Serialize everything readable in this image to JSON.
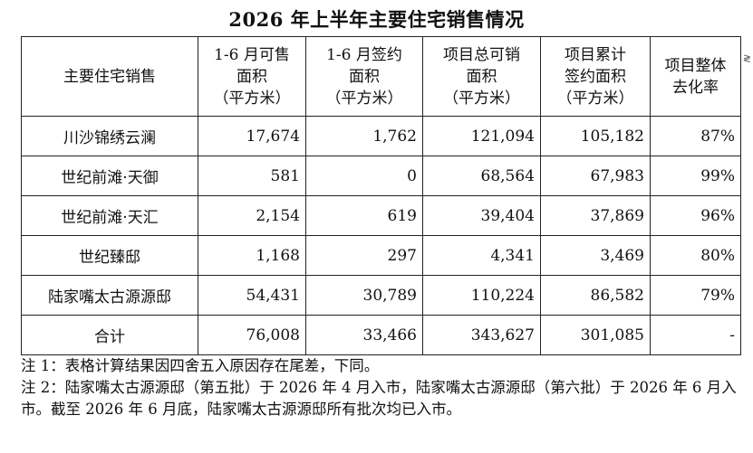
{
  "title": "2026 年上半年主要住宅销售情况",
  "table": {
    "headers": [
      [
        "主要住宅销售"
      ],
      [
        "1-6 月可售",
        "面积",
        "（平方米）"
      ],
      [
        "1-6 月签约",
        "面积",
        "（平方米）"
      ],
      [
        "项目总可销",
        "面积",
        "（平方米）"
      ],
      [
        "项目累计",
        "签约面积",
        "（平方米）"
      ],
      [
        "项目整体",
        "去化率"
      ]
    ],
    "rows": [
      {
        "name": "川沙锦绣云澜",
        "available": "17,674",
        "signed": "1,762",
        "total": "121,094",
        "cumulative": "105,182",
        "rate": "87%"
      },
      {
        "name": "世纪前滩·天御",
        "available": "581",
        "signed": "0",
        "total": "68,564",
        "cumulative": "67,983",
        "rate": "99%"
      },
      {
        "name": "世纪前滩·天汇",
        "available": "2,154",
        "signed": "619",
        "total": "39,404",
        "cumulative": "37,869",
        "rate": "96%"
      },
      {
        "name": "世纪臻邸",
        "available": "1,168",
        "signed": "297",
        "total": "4,341",
        "cumulative": "3,469",
        "rate": "80%"
      },
      {
        "name": "陆家嘴太古源源邸",
        "available": "54,431",
        "signed": "30,789",
        "total": "110,224",
        "cumulative": "86,582",
        "rate": "79%"
      },
      {
        "name": "合计",
        "available": "76,008",
        "signed": "33,466",
        "total": "343,627",
        "cumulative": "301,085",
        "rate": "-"
      }
    ]
  },
  "notes": [
    "注 1：表格计算结果因四舍五入原因存在尾差，下同。",
    "注 2：陆家嘴太古源源邸（第五批）于 2026 年 4 月入市，陆家嘴太古源源邸（第六批）于 2026 年 6 月入市。截至 2026 年 6 月底，陆家嘴太古源源邸所有批次均已入市。"
  ],
  "edge_mark": "≷"
}
